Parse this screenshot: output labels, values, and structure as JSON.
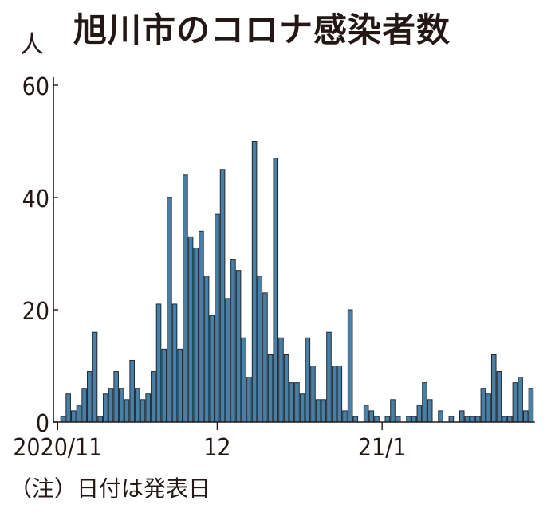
{
  "chart_data": {
    "type": "bar",
    "title": "旭川市のコロナ感染者数",
    "ylabel": "人",
    "xlabel": "",
    "ylim": [
      0,
      60
    ],
    "yticks": [
      0,
      20,
      40,
      60
    ],
    "xtick_labels": [
      {
        "label": "2020/11",
        "index": 0
      },
      {
        "label": "12",
        "index": 30
      },
      {
        "label": "21/1",
        "index": 61
      }
    ],
    "note": "（注）日付は発表日",
    "bar_color": "#4a7fa5",
    "values": [
      0,
      1,
      5,
      2,
      3,
      6,
      9,
      16,
      1,
      5,
      6,
      9,
      6,
      4,
      11,
      6,
      4,
      5,
      9,
      21,
      13,
      40,
      21,
      13,
      44,
      33,
      31,
      34,
      26,
      19,
      37,
      45,
      22,
      29,
      27,
      15,
      8,
      50,
      26,
      23,
      12,
      47,
      15,
      12,
      7,
      7,
      5,
      15,
      10,
      4,
      4,
      16,
      10,
      10,
      2,
      20,
      1,
      0,
      3,
      2,
      1,
      0,
      1,
      4,
      1,
      0,
      1,
      1,
      3,
      7,
      4,
      0,
      2,
      0,
      1,
      0,
      2,
      1,
      1,
      1,
      6,
      5,
      12,
      9,
      1,
      1,
      7,
      8,
      2,
      6
    ]
  }
}
